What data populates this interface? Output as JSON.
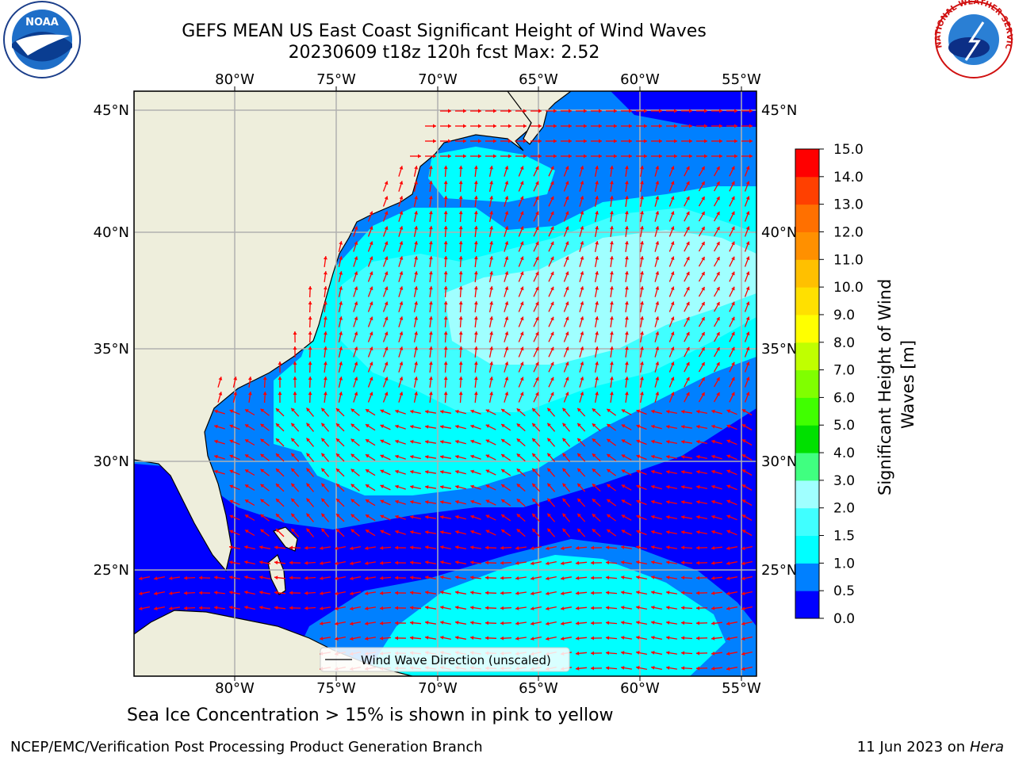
{
  "header": {
    "title_line1": "GEFS MEAN US East Coast Significant Height of Wind Waves",
    "title_line2": "20230609 t18z 120h fcst   Max: 2.52"
  },
  "logos": {
    "left_text": "NOAA",
    "right_text": "NATIONAL WEATHER SERVICE"
  },
  "axes": {
    "lon_labels": [
      "80°W",
      "75°W",
      "70°W",
      "65°W",
      "60°W",
      "55°W"
    ],
    "lat_labels": [
      "45°N",
      "40°N",
      "35°N",
      "30°N",
      "25°N"
    ]
  },
  "legend": {
    "label": "Wind Wave Direction (unscaled)"
  },
  "colorbar": {
    "label": "Significant Height of Wind Waves [m]",
    "ticks": [
      "0.0",
      "0.5",
      "1.0",
      "1.5",
      "2.0",
      "3.0",
      "4.0",
      "5.0",
      "6.0",
      "7.0",
      "8.0",
      "9.0",
      "10.0",
      "11.0",
      "12.0",
      "13.0",
      "14.0",
      "15.0"
    ],
    "colors": [
      "#0000ff",
      "#0080ff",
      "#00ffff",
      "#40ffff",
      "#a0ffff",
      "#40ff80",
      "#00e000",
      "#40ff00",
      "#80ff00",
      "#c0ff00",
      "#ffff00",
      "#ffe000",
      "#ffc000",
      "#ff9000",
      "#ff7000",
      "#ff4000",
      "#ff0000"
    ]
  },
  "colors": {
    "land": "#eeeedc",
    "arrow": "#ff0000",
    "grid": "#b0b0b0"
  },
  "footer": {
    "note": "Sea Ice Concentration > 15% is shown in pink to yellow",
    "credit_left": "NCEP/EMC/Verification Post Processing Product Generation Branch",
    "date": "11 Jun 2023 on",
    "host": "Hera"
  }
}
